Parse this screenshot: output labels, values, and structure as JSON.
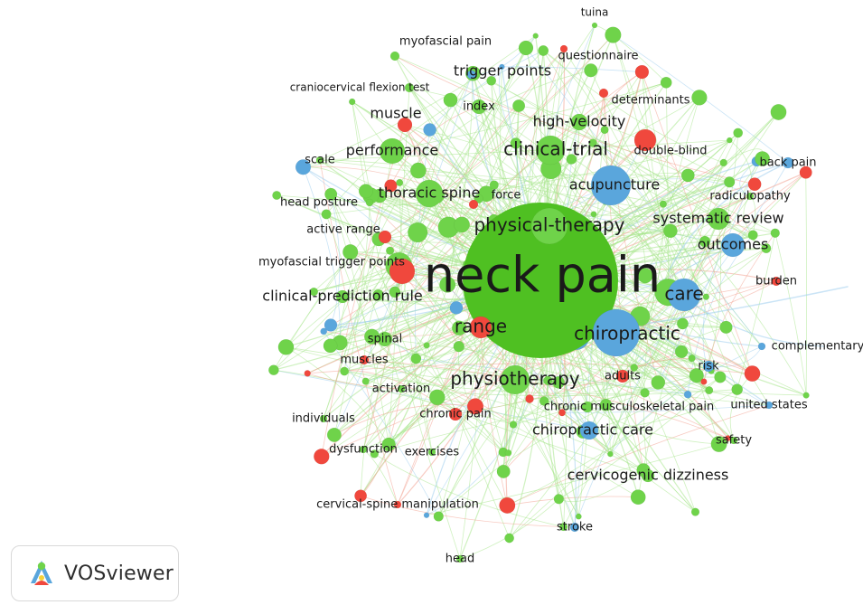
{
  "colors": {
    "green": "#6fd34a",
    "green_big": "#4fc022",
    "blue": "#5aa6dc",
    "red": "#f0483d",
    "edge_green": "#a7e58d",
    "edge_blue": "#9fcdee",
    "edge_red": "#f3a090"
  },
  "labels": [
    {
      "text": "neck pain",
      "cluster": "green",
      "weight": "xl"
    },
    {
      "text": "chiropractic",
      "cluster": "blue",
      "weight": "l"
    },
    {
      "text": "physical-therapy",
      "cluster": "green",
      "weight": "l"
    },
    {
      "text": "physiotherapy",
      "cluster": "green",
      "weight": "l"
    },
    {
      "text": "clinical-trial",
      "cluster": "green",
      "weight": "l"
    },
    {
      "text": "range",
      "cluster": "red",
      "weight": "l"
    },
    {
      "text": "care",
      "cluster": "blue",
      "weight": "l"
    },
    {
      "text": "acupuncture",
      "cluster": "blue",
      "weight": "m"
    },
    {
      "text": "thoracic spine",
      "cluster": "green",
      "weight": "m"
    },
    {
      "text": "systematic review",
      "cluster": "green",
      "weight": "m"
    },
    {
      "text": "outcomes",
      "cluster": "blue",
      "weight": "m"
    },
    {
      "text": "chiropractic care",
      "cluster": "blue",
      "weight": "m"
    },
    {
      "text": "performance",
      "cluster": "green",
      "weight": "m"
    },
    {
      "text": "muscle",
      "cluster": "red",
      "weight": "m"
    },
    {
      "text": "trigger points",
      "cluster": "green",
      "weight": "m"
    },
    {
      "text": "high-velocity",
      "cluster": "green",
      "weight": "m"
    },
    {
      "text": "clinical-prediction rule",
      "cluster": "green",
      "weight": "m"
    },
    {
      "text": "cervicogenic dizziness",
      "cluster": "green",
      "weight": "m"
    },
    {
      "text": "myofascial pain",
      "cluster": "green",
      "weight": "s"
    },
    {
      "text": "questionnaire",
      "cluster": "red",
      "weight": "s"
    },
    {
      "text": "tuina",
      "cluster": "green",
      "weight": "xs"
    },
    {
      "text": "craniocervical flexion test",
      "cluster": "green",
      "weight": "xs"
    },
    {
      "text": "index",
      "cluster": "green",
      "weight": "s"
    },
    {
      "text": "determinants",
      "cluster": "red",
      "weight": "s"
    },
    {
      "text": "double-blind",
      "cluster": "red",
      "weight": "s"
    },
    {
      "text": "back pain",
      "cluster": "blue",
      "weight": "s"
    },
    {
      "text": "scale",
      "cluster": "green",
      "weight": "s"
    },
    {
      "text": "force",
      "cluster": "red",
      "weight": "s"
    },
    {
      "text": "radiculopathy",
      "cluster": "green",
      "weight": "s"
    },
    {
      "text": "head posture",
      "cluster": "green",
      "weight": "s"
    },
    {
      "text": "active range",
      "cluster": "red",
      "weight": "s"
    },
    {
      "text": "myofascial trigger points",
      "cluster": "red",
      "weight": "s"
    },
    {
      "text": "burden",
      "cluster": "red",
      "weight": "s"
    },
    {
      "text": "complementary",
      "cluster": "blue",
      "weight": "s"
    },
    {
      "text": "spinal",
      "cluster": "green",
      "weight": "s"
    },
    {
      "text": "muscles",
      "cluster": "red",
      "weight": "s"
    },
    {
      "text": "adults",
      "cluster": "red",
      "weight": "s"
    },
    {
      "text": "risk",
      "cluster": "blue",
      "weight": "s"
    },
    {
      "text": "activation",
      "cluster": "green",
      "weight": "s"
    },
    {
      "text": "chronic musculoskeletal pain",
      "cluster": "green",
      "weight": "s"
    },
    {
      "text": "united states",
      "cluster": "blue",
      "weight": "s"
    },
    {
      "text": "individuals",
      "cluster": "green",
      "weight": "s"
    },
    {
      "text": "chronic pain",
      "cluster": "red",
      "weight": "s"
    },
    {
      "text": "safety",
      "cluster": "green",
      "weight": "s"
    },
    {
      "text": "dysfunction",
      "cluster": "green",
      "weight": "s"
    },
    {
      "text": "exercises",
      "cluster": "green",
      "weight": "s"
    },
    {
      "text": "cervical-spine manipulation",
      "cluster": "red",
      "weight": "s"
    },
    {
      "text": "stroke",
      "cluster": "blue",
      "weight": "s"
    },
    {
      "text": "head",
      "cluster": "green",
      "weight": "s"
    }
  ],
  "branding": {
    "logo_text": "VOSviewer",
    "logo_icon": "vosviewer-logo-icon"
  }
}
